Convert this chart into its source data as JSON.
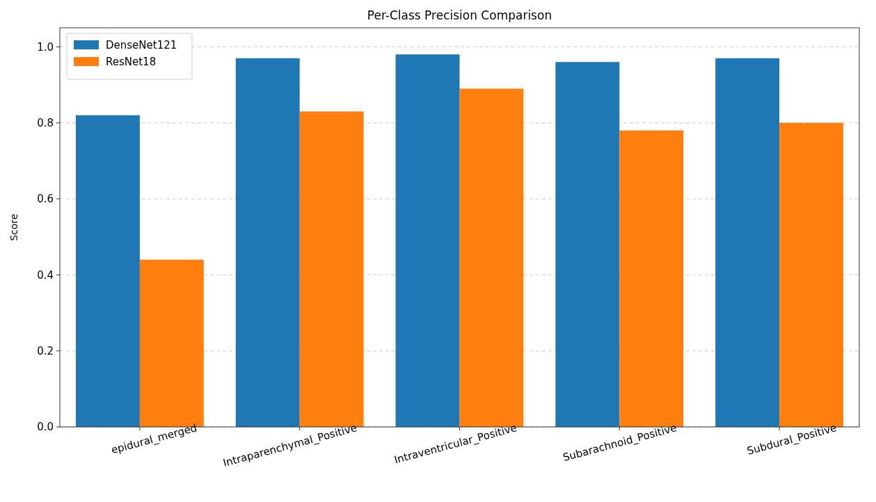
{
  "chart_data": {
    "type": "bar",
    "title": "Per-Class Precision Comparison",
    "ylabel": "Score",
    "categories": [
      "epidural_merged",
      "Intraparenchymal_Positive",
      "Intraventricular_Positive",
      "Subarachnoid_Positive",
      "Subdural_Positive"
    ],
    "series": [
      {
        "name": "DenseNet121",
        "color": "#1f77b4",
        "values": [
          0.82,
          0.97,
          0.98,
          0.96,
          0.97
        ]
      },
      {
        "name": "ResNet18",
        "color": "#ff7f0e",
        "values": [
          0.44,
          0.83,
          0.89,
          0.78,
          0.8
        ]
      }
    ],
    "ylim": [
      0,
      1.05
    ],
    "yticks": [
      {
        "value": 0,
        "label": "0.0"
      },
      {
        "value": 0.2,
        "label": "0.2"
      },
      {
        "value": 0.4,
        "label": "0.4"
      },
      {
        "value": 0.6,
        "label": "0.6"
      },
      {
        "value": 0.8,
        "label": "0.8"
      },
      {
        "value": 1,
        "label": "1.0"
      }
    ],
    "grid": "y",
    "legend": "top left"
  }
}
